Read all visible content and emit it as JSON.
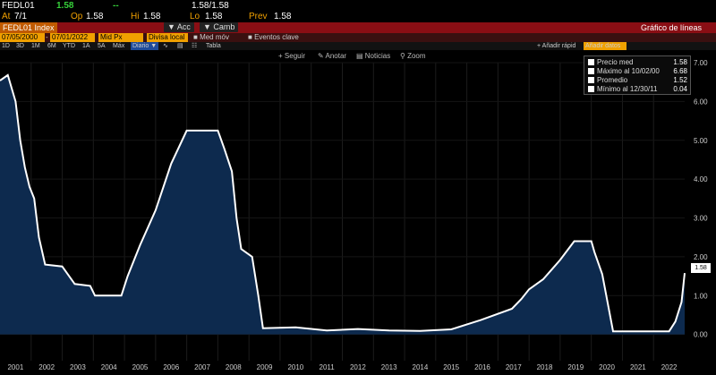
{
  "ticker": {
    "symbol": "FEDL01",
    "last": "1.58",
    "change": "--",
    "bid_ask": "1.58/1.58",
    "at_label": "At",
    "at_value": "7/1",
    "open_label": "Op",
    "open_value": "1.58",
    "high_label": "Hi",
    "high_value": "1.58",
    "low_label": "Lo",
    "low_value": "1.58",
    "prev_label": "Prev",
    "prev_value": "1.58"
  },
  "toolbar": {
    "index_name": "FEDL01 Index",
    "acc_label": "Acc",
    "camb_label": "Camb",
    "chart_type": "Gráfico de líneas",
    "start_date": "07/05/2000",
    "end_date": "07/01/2022",
    "field": "Mid Px",
    "local_currency": "Divisa local",
    "mid_mov": "Med móv",
    "key_events": "Eventos clave",
    "quick_add": "Añadir rápid",
    "add_data": "Añadir datos"
  },
  "periods": [
    "1D",
    "3D",
    "1M",
    "6M",
    "YTD",
    "1A",
    "5A",
    "Máx",
    "Diario",
    "Tabla"
  ],
  "chart_actions": [
    "Seguir",
    "Anotar",
    "Noticias",
    "Zoom"
  ],
  "legend": {
    "items": [
      {
        "label": "Precio med",
        "value": "1.58",
        "color": "#ffffff"
      },
      {
        "label": "Máximo al 10/02/00",
        "value": "6.68",
        "color": "#ffffff"
      },
      {
        "label": "Promedio",
        "value": "1.52",
        "color": "#ffffff"
      },
      {
        "label": "Mínimo al 12/30/11",
        "value": "0.04",
        "color": "#ffffff"
      }
    ]
  },
  "last_value_tag": "1.58",
  "chart_data": {
    "type": "area",
    "ylim": [
      -0.4,
      7.0
    ],
    "yticks": [
      "0.00",
      "1.00",
      "2.00",
      "3.00",
      "4.00",
      "5.00",
      "6.00",
      "7.00"
    ],
    "xlabels": [
      "2001",
      "2002",
      "2003",
      "2004",
      "2005",
      "2006",
      "2007",
      "2008",
      "2009",
      "2010",
      "2011",
      "2012",
      "2013",
      "2014",
      "2015",
      "2016",
      "2017",
      "2018",
      "2019",
      "2020",
      "2021",
      "2022"
    ],
    "series": [
      {
        "values": [
          [
            2000.5,
            6.54
          ],
          [
            2000.75,
            6.68
          ],
          [
            2001.0,
            6.0
          ],
          [
            2001.15,
            5.0
          ],
          [
            2001.3,
            4.3
          ],
          [
            2001.45,
            3.8
          ],
          [
            2001.6,
            3.5
          ],
          [
            2001.75,
            2.5
          ],
          [
            2001.95,
            1.8
          ],
          [
            2002.5,
            1.75
          ],
          [
            2002.9,
            1.3
          ],
          [
            2003.4,
            1.25
          ],
          [
            2003.55,
            1.0
          ],
          [
            2004.4,
            1.0
          ],
          [
            2004.6,
            1.5
          ],
          [
            2005.0,
            2.3
          ],
          [
            2005.5,
            3.2
          ],
          [
            2006.0,
            4.4
          ],
          [
            2006.5,
            5.25
          ],
          [
            2007.5,
            5.25
          ],
          [
            2007.7,
            4.8
          ],
          [
            2007.95,
            4.2
          ],
          [
            2008.1,
            3.0
          ],
          [
            2008.25,
            2.2
          ],
          [
            2008.6,
            2.0
          ],
          [
            2008.8,
            1.0
          ],
          [
            2008.95,
            0.16
          ],
          [
            2010.0,
            0.18
          ],
          [
            2011.0,
            0.1
          ],
          [
            2012.0,
            0.14
          ],
          [
            2013.0,
            0.1
          ],
          [
            2014.0,
            0.09
          ],
          [
            2015.0,
            0.13
          ],
          [
            2015.95,
            0.37
          ],
          [
            2016.95,
            0.66
          ],
          [
            2017.25,
            0.91
          ],
          [
            2017.5,
            1.16
          ],
          [
            2017.95,
            1.42
          ],
          [
            2018.25,
            1.69
          ],
          [
            2018.5,
            1.92
          ],
          [
            2018.95,
            2.4
          ],
          [
            2019.5,
            2.4
          ],
          [
            2019.6,
            2.12
          ],
          [
            2019.85,
            1.55
          ],
          [
            2020.2,
            0.08
          ],
          [
            2021.0,
            0.08
          ],
          [
            2022.0,
            0.08
          ],
          [
            2022.2,
            0.33
          ],
          [
            2022.4,
            0.83
          ],
          [
            2022.5,
            1.58
          ]
        ]
      }
    ],
    "xmin": 2000.5,
    "xmax": 2022.5,
    "line_color": "#ffffff",
    "fill_color": "#0d2a4e",
    "background": "#000000"
  }
}
